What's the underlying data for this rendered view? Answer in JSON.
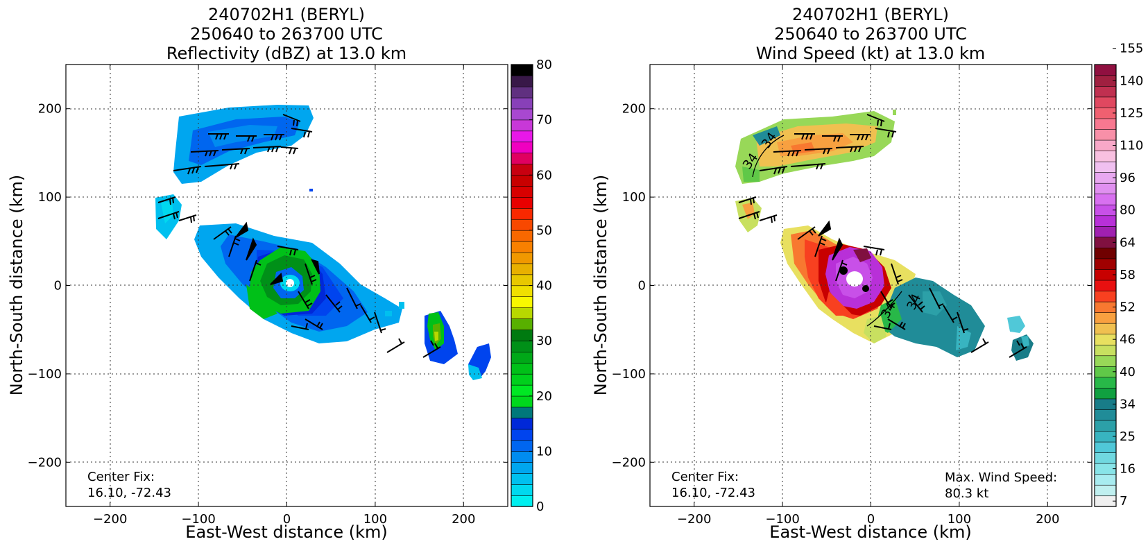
{
  "chart_data": [
    {
      "type": "heatmap",
      "title_lines": [
        "240702H1 (BERYL)",
        "250640 to 263700 UTC",
        "Reflectivity (dBZ) at 13.0 km"
      ],
      "xlabel": "East-West distance (km)",
      "ylabel": "North-South distance (km)",
      "xlim": [
        -250,
        250
      ],
      "ylim": [
        -250,
        250
      ],
      "xticks": [
        -200,
        -100,
        0,
        100,
        200
      ],
      "yticks": [
        -200,
        -100,
        0,
        100,
        200
      ],
      "xtick_labels": [
        "−200",
        "−100",
        "0",
        "100",
        "200"
      ],
      "ytick_labels": [
        "−200",
        "−100",
        "0",
        "100",
        "200"
      ],
      "grid": "dotted",
      "annotations": [
        "Center Fix:",
        "16.10, -72.43"
      ],
      "colorbar": {
        "label_values": [
          "80",
          "70",
          "60",
          "50",
          "40",
          "30",
          "20",
          "10",
          "0"
        ],
        "min": 0,
        "max": 80,
        "colors": [
          "#00efef",
          "#00d9ef",
          "#00c0ef",
          "#00a6ef",
          "#008cf0",
          "#0066ef",
          "#0044ee",
          "#0028d8",
          "#00787a",
          "#00d81c",
          "#00e823",
          "#00d01c",
          "#00c018",
          "#00a818",
          "#009018",
          "#007a10",
          "#58b000",
          "#b8d800",
          "#f8f800",
          "#f0e000",
          "#e8c800",
          "#e8b000",
          "#f09800",
          "#f88000",
          "#f86800",
          "#f84800",
          "#f82800",
          "#e80000",
          "#d80000",
          "#c80000",
          "#c80010",
          "#e00060",
          "#f000c0",
          "#e818e8",
          "#c838d8",
          "#a848d0",
          "#8840b8",
          "#603080",
          "#381848",
          "#000000"
        ]
      },
      "features": [
        {
          "name": "north-band",
          "level": "10-15 dBZ",
          "x_range": [
            -130,
            40
          ],
          "y_range": [
            115,
            205
          ]
        },
        {
          "name": "west-fragment",
          "level": "0-10 dBZ",
          "x_range": [
            -150,
            -120
          ],
          "y_range": [
            55,
            100
          ]
        },
        {
          "name": "core-eyewall",
          "level": "20-28 dBZ",
          "x_range": [
            -40,
            40
          ],
          "y_range": [
            -40,
            40
          ]
        },
        {
          "name": "south-east-cell",
          "level": "20-26 dBZ",
          "x_range": [
            155,
            200
          ],
          "y_range": [
            -90,
            -30
          ]
        },
        {
          "name": "far-east-cell",
          "level": "5-12 dBZ",
          "x_range": [
            205,
            230
          ],
          "y_range": [
            -105,
            -65
          ]
        }
      ]
    },
    {
      "type": "heatmap",
      "title_lines": [
        "240702H1 (BERYL)",
        "250640 to 263700 UTC",
        "Wind Speed (kt) at 13.0 km"
      ],
      "xlabel": "East-West distance (km)",
      "ylabel": "North-South distance (km)",
      "xlim": [
        -250,
        250
      ],
      "ylim": [
        -250,
        250
      ],
      "xticks": [
        -200,
        -100,
        0,
        100,
        200
      ],
      "yticks": [
        -200,
        -100,
        0,
        100,
        200
      ],
      "xtick_labels": [
        "−200",
        "−100",
        "0",
        "100",
        "200"
      ],
      "ytick_labels": [
        "−200",
        "−100",
        "0",
        "100",
        "200"
      ],
      "grid": "dotted",
      "annotations": [
        "Center Fix:",
        "16.10, -72.43",
        "Max. Wind Speed:",
        "80.3 kt"
      ],
      "contour_labels": [
        "34",
        "34",
        "34",
        "34"
      ],
      "colorbar": {
        "label_values": [
          "155",
          "140",
          "125",
          "110",
          "96",
          "80",
          "64",
          "58",
          "52",
          "46",
          "40",
          "34",
          "25",
          "16",
          "7"
        ],
        "colors": [
          "#f0f0f0",
          "#c0f0f0",
          "#a8ecf0",
          "#88e4e8",
          "#70d8e0",
          "#50c8d8",
          "#38b4c0",
          "#2ca0a8",
          "#208c98",
          "#187c88",
          "#10a040",
          "#28b848",
          "#60c848",
          "#98d858",
          "#c8e060",
          "#e8e060",
          "#f0c050",
          "#f8a040",
          "#f87830",
          "#f84020",
          "#e81010",
          "#c80000",
          "#a00000",
          "#700000",
          "#801040",
          "#a020b0",
          "#b830d8",
          "#c850e8",
          "#d870f0",
          "#e090f0",
          "#e8a8f0",
          "#f0c0f0",
          "#f8c0e0",
          "#f8a8c8",
          "#f890a8",
          "#f87890",
          "#f06070",
          "#e04860",
          "#c03050",
          "#a02040",
          "#901040"
        ]
      },
      "features": [
        {
          "name": "north-band",
          "level": "40-52 kt",
          "x_range": [
            -140,
            30
          ],
          "y_range": [
            115,
            200
          ]
        },
        {
          "name": "west-fragment",
          "level": "40-52 kt",
          "x_range": [
            -155,
            -130
          ],
          "y_range": [
            60,
            95
          ]
        },
        {
          "name": "core-ring",
          "level": "64-80 kt",
          "x_range": [
            -50,
            35
          ],
          "y_range": [
            -45,
            45
          ]
        },
        {
          "name": "east-arm",
          "level": "25-34 kt",
          "x_range": [
            40,
            140
          ],
          "y_range": [
            -80,
            10
          ]
        },
        {
          "name": "far-east-cell",
          "level": "16-25 kt",
          "x_range": [
            155,
            185
          ],
          "y_range": [
            -90,
            -35
          ]
        }
      ]
    }
  ]
}
